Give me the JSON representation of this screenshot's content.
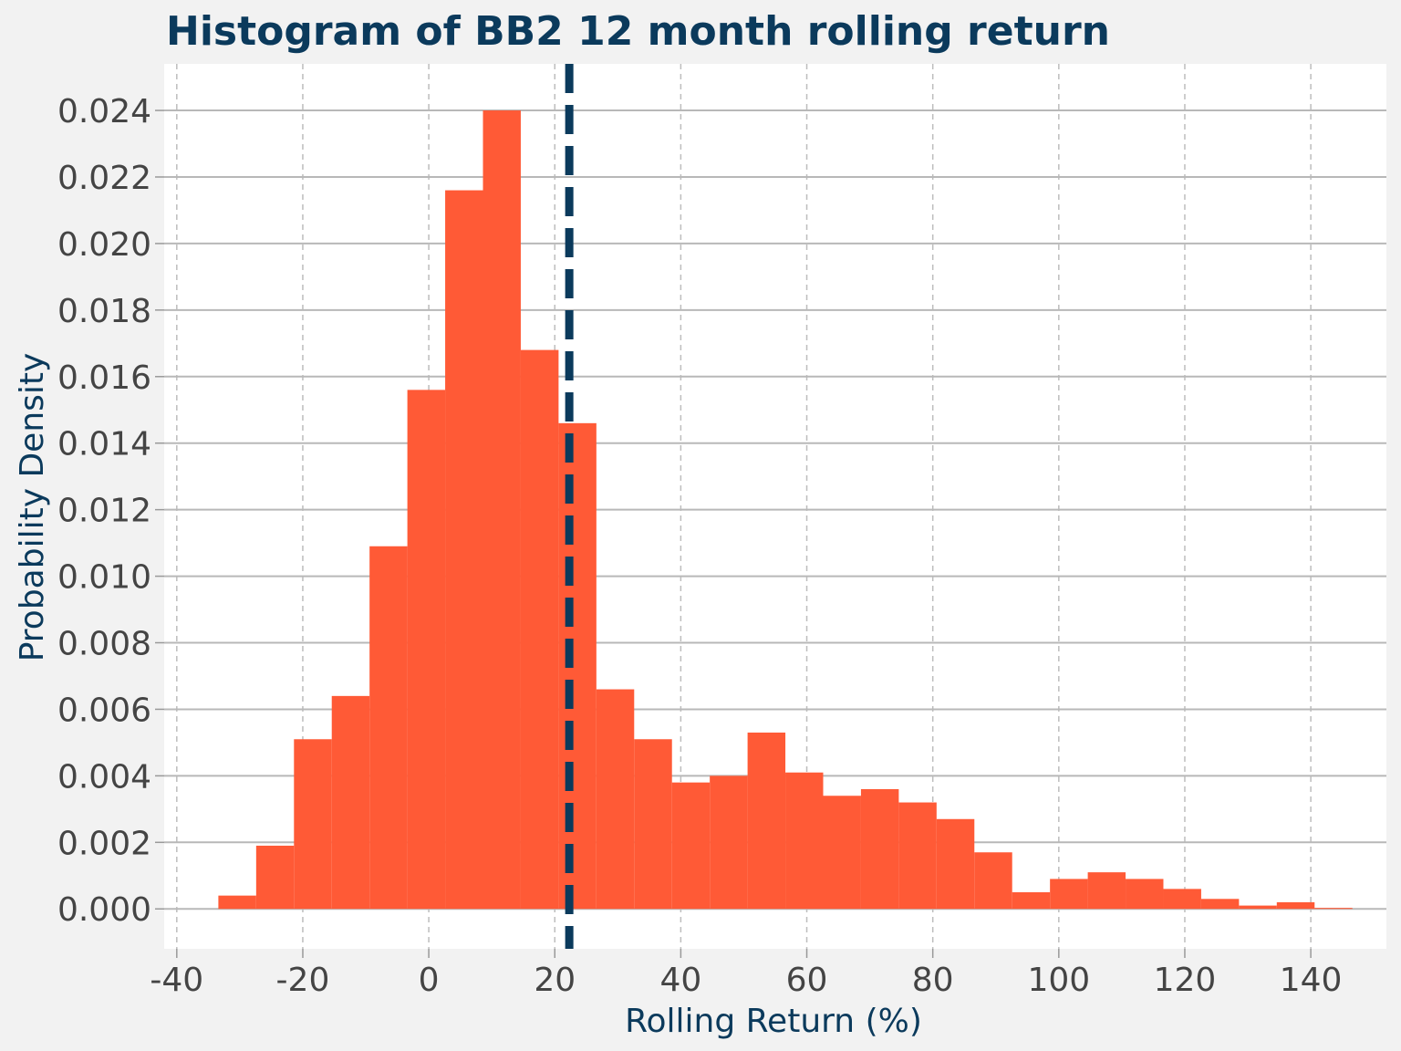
{
  "colors": {
    "background": "#f2f2f2",
    "plot_background": "#ffffff",
    "bar": "#ff5a36",
    "mean_line": "#0b3a5c",
    "title": "#0b3a5c",
    "axis_label": "#0b3a5c",
    "tick_label": "#444444",
    "grid_h": "#b8b8b8",
    "grid_v": "#bdbdbd"
  },
  "chart_data": {
    "type": "bar",
    "title": "Histogram of BB2 12 month rolling return",
    "xlabel": "Rolling Return (%)",
    "ylabel": "Probability Density",
    "xlim": [
      -42,
      152
    ],
    "ylim": [
      -0.0012,
      0.0254
    ],
    "xticks": [
      -40,
      -20,
      0,
      20,
      40,
      60,
      80,
      100,
      120,
      140
    ],
    "xtick_labels": [
      "-40",
      "-20",
      "0",
      "20",
      "40",
      "60",
      "80",
      "100",
      "120",
      "140"
    ],
    "yticks": [
      0,
      0.002,
      0.004,
      0.006,
      0.008,
      0.01,
      0.012,
      0.014,
      0.016,
      0.018,
      0.02,
      0.022,
      0.024
    ],
    "ytick_labels": [
      "0.000",
      "0.002",
      "0.004",
      "0.006",
      "0.008",
      "0.010",
      "0.012",
      "0.014",
      "0.016",
      "0.018",
      "0.020",
      "0.022",
      "0.024"
    ],
    "grid": {
      "horizontal": "solid",
      "vertical": "dashed"
    },
    "bins": {
      "edges": [
        -33.4,
        -27.4,
        -21.4,
        -15.4,
        -9.4,
        -3.4,
        2.6,
        8.6,
        14.6,
        20.6,
        26.6,
        32.6,
        38.6,
        44.6,
        50.6,
        56.6,
        62.6,
        68.6,
        74.6,
        80.6,
        86.6,
        92.6,
        98.6,
        104.6,
        110.6,
        116.6,
        122.6,
        128.6,
        134.6,
        140.6,
        146.6
      ],
      "values": [
        0.0004,
        0.0019,
        0.0051,
        0.0064,
        0.0109,
        0.0156,
        0.0216,
        0.024,
        0.0168,
        0.0146,
        0.0066,
        0.0051,
        0.0038,
        0.004,
        0.0053,
        0.0041,
        0.0034,
        0.0036,
        0.0032,
        0.0027,
        0.0017,
        0.0005,
        0.0009,
        0.0011,
        0.0009,
        0.0006,
        0.0003,
        0.0001,
        0.0002,
        3e-05
      ]
    },
    "mean_line": {
      "x": 22.3,
      "style": "dashed"
    }
  }
}
